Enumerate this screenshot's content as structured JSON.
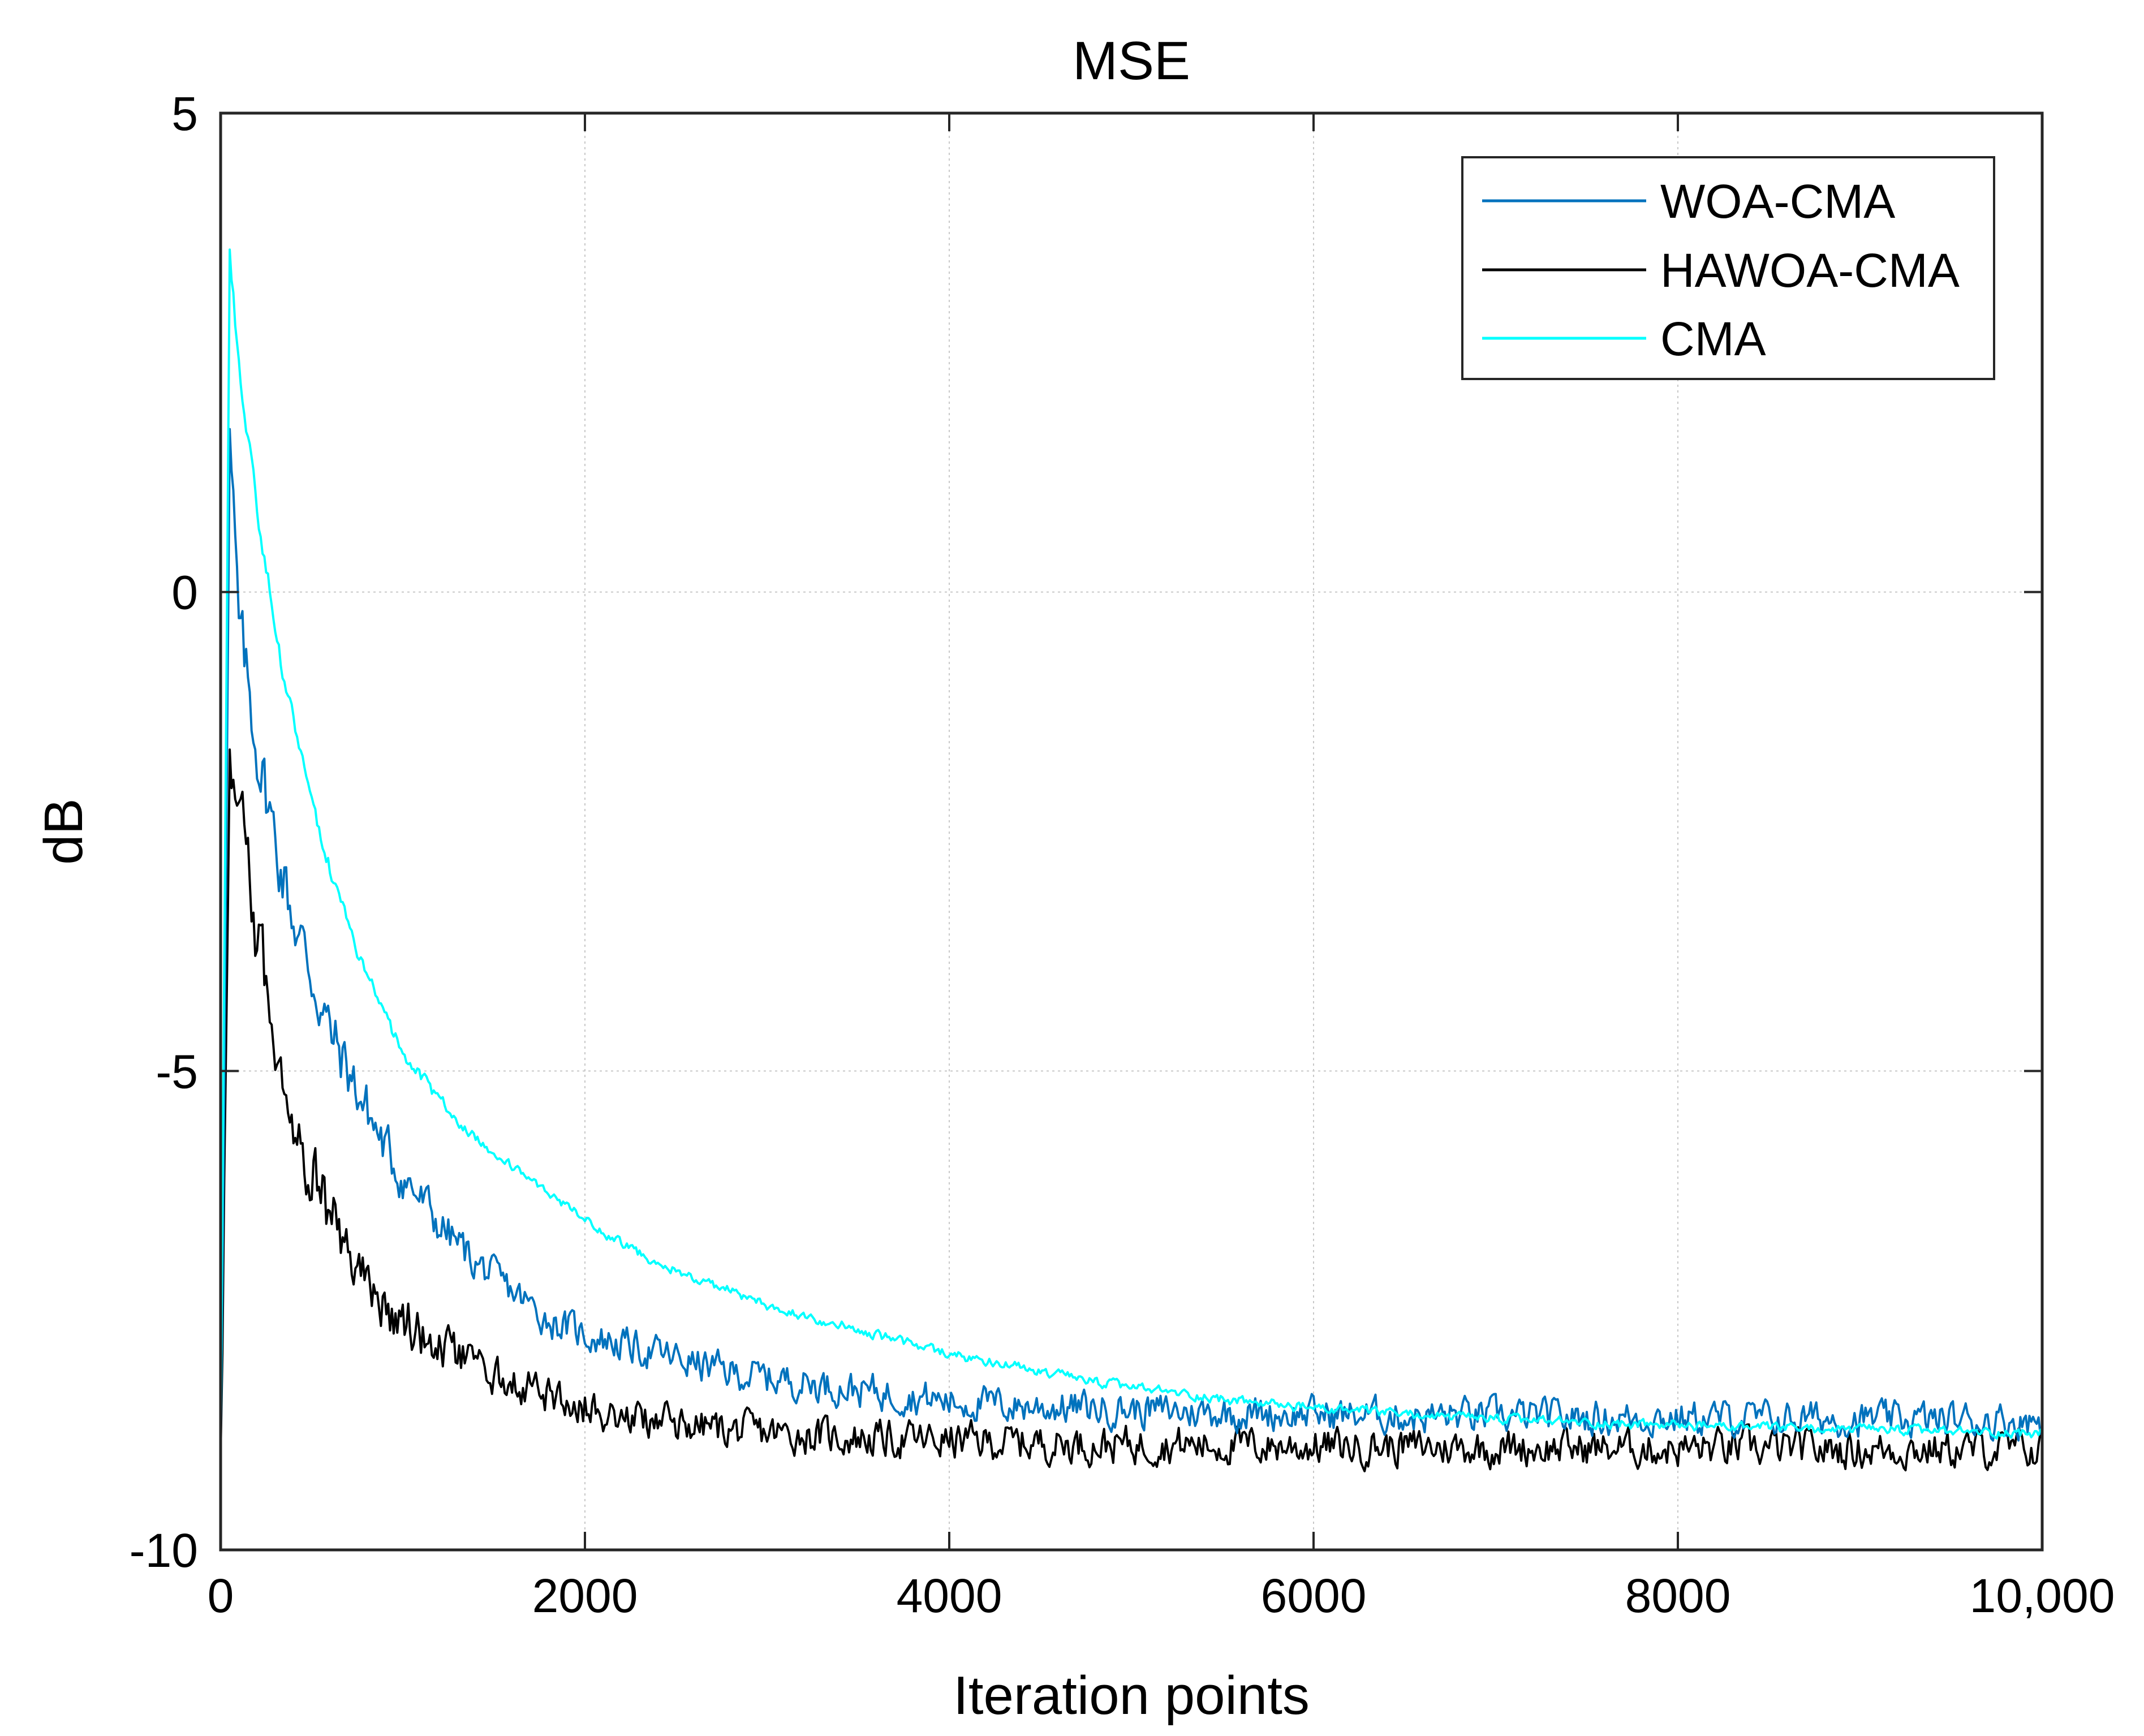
{
  "chart_data": {
    "type": "line",
    "title": "MSE",
    "xlabel": "Iteration points",
    "ylabel": "dB",
    "xlim": [
      0,
      10000
    ],
    "ylim": [
      -10,
      5
    ],
    "grid": true,
    "legend_position": "top-right",
    "x_ticks": [
      0,
      2000,
      4000,
      6000,
      8000,
      10000
    ],
    "x_tick_labels": [
      "0",
      "2000",
      "4000",
      "6000",
      "8000",
      "10,000"
    ],
    "y_ticks": [
      5,
      0,
      -5,
      -10
    ],
    "y_tick_labels": [
      "5",
      "0",
      "-5",
      "-10"
    ],
    "x": [
      0,
      50,
      100,
      200,
      300,
      400,
      500,
      600,
      700,
      800,
      900,
      1000,
      1200,
      1400,
      1600,
      1800,
      2000,
      2200,
      2400,
      2600,
      2800,
      3000,
      3200,
      3400,
      3600,
      3800,
      4000,
      4400,
      4800,
      5200,
      5600,
      6000,
      6400,
      6800,
      7200,
      7600,
      8000,
      8400,
      8800,
      9200,
      9600,
      10000
    ],
    "series": [
      {
        "name": "WOA-CMA",
        "color": "#0072BD",
        "noise_db": 0.28,
        "values": [
          -9.0,
          1.5,
          -0.4,
          -1.6,
          -2.6,
          -3.4,
          -4.0,
          -4.6,
          -5.0,
          -5.4,
          -5.8,
          -6.1,
          -6.6,
          -7.0,
          -7.3,
          -7.6,
          -7.75,
          -7.85,
          -7.95,
          -8.05,
          -8.15,
          -8.2,
          -8.25,
          -8.3,
          -8.35,
          -8.4,
          -8.45,
          -8.5,
          -8.52,
          -8.55,
          -8.57,
          -8.58,
          -8.6,
          -8.6,
          -8.61,
          -8.62,
          -8.62,
          -8.63,
          -8.63,
          -8.64,
          -8.64,
          -8.65
        ]
      },
      {
        "name": "HAWOA-CMA",
        "color": "#000000",
        "noise_db": 0.3,
        "values": [
          -9.0,
          -2.0,
          -2.3,
          -3.6,
          -4.6,
          -5.4,
          -6.0,
          -6.5,
          -6.9,
          -7.2,
          -7.45,
          -7.6,
          -7.9,
          -8.1,
          -8.25,
          -8.4,
          -8.5,
          -8.6,
          -8.65,
          -8.7,
          -8.75,
          -8.78,
          -8.8,
          -8.82,
          -8.84,
          -8.85,
          -8.86,
          -8.88,
          -8.9,
          -8.9,
          -8.91,
          -8.92,
          -8.92,
          -8.93,
          -8.93,
          -8.94,
          -8.94,
          -8.94,
          -8.95,
          -8.95,
          -8.95,
          -8.95
        ]
      },
      {
        "name": "CMA",
        "color": "#00FFFF",
        "noise_db": 0.08,
        "values": [
          -9.0,
          3.4,
          2.4,
          0.9,
          -0.4,
          -1.4,
          -2.2,
          -2.9,
          -3.5,
          -4.0,
          -4.4,
          -4.8,
          -5.3,
          -5.7,
          -6.0,
          -6.3,
          -6.55,
          -6.8,
          -7.0,
          -7.15,
          -7.3,
          -7.45,
          -7.55,
          -7.65,
          -7.75,
          -7.85,
          -7.95,
          -8.1,
          -8.25,
          -8.35,
          -8.45,
          -8.52,
          -8.57,
          -8.62,
          -8.65,
          -8.68,
          -8.7,
          -8.72,
          -8.74,
          -8.75,
          -8.77,
          -8.78
        ]
      }
    ]
  }
}
